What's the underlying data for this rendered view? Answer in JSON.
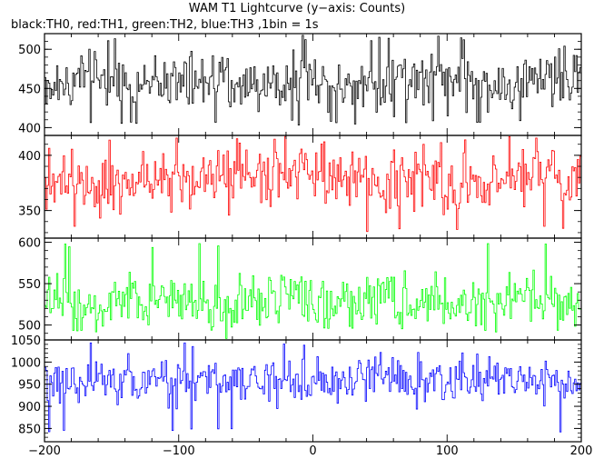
{
  "title": "WAM T1 Lightcurve (y−axis: Counts)",
  "subtitle": "black:TH0, red:TH1, green:TH2, blue:TH3 ,1bin = 1s",
  "chart_data": [
    {
      "type": "line",
      "name": "TH0",
      "color": "#000000",
      "x_range": [
        -200,
        200
      ],
      "ylim": [
        390,
        520
      ],
      "yticks": [
        400,
        450,
        500
      ],
      "mean": 458,
      "amplitude": 25,
      "min": 402,
      "max": 518
    },
    {
      "type": "line",
      "name": "TH1",
      "color": "#ff0000",
      "x_range": [
        -200,
        200
      ],
      "ylim": [
        325,
        418
      ],
      "yticks": [
        350,
        400
      ],
      "mean": 378,
      "amplitude": 20,
      "min": 331,
      "max": 417
    },
    {
      "type": "line",
      "name": "TH2",
      "color": "#00ff00",
      "x_range": [
        -200,
        200
      ],
      "ylim": [
        482,
        605
      ],
      "yticks": [
        500,
        550,
        600
      ],
      "mean": 528,
      "amplitude": 22,
      "min": 490,
      "max": 600
    },
    {
      "type": "line",
      "name": "TH3",
      "color": "#0000ff",
      "x_range": [
        -200,
        200
      ],
      "ylim": [
        820,
        1050
      ],
      "yticks": [
        850,
        900,
        950,
        1000,
        1050
      ],
      "mean": 960,
      "amplitude": 35,
      "min": 840,
      "max": 1045
    }
  ],
  "x_axis": {
    "ticks": [
      -200,
      -100,
      0,
      100,
      200
    ],
    "tick_labels": [
      "−200",
      "−100",
      "0",
      "100",
      "200"
    ]
  }
}
